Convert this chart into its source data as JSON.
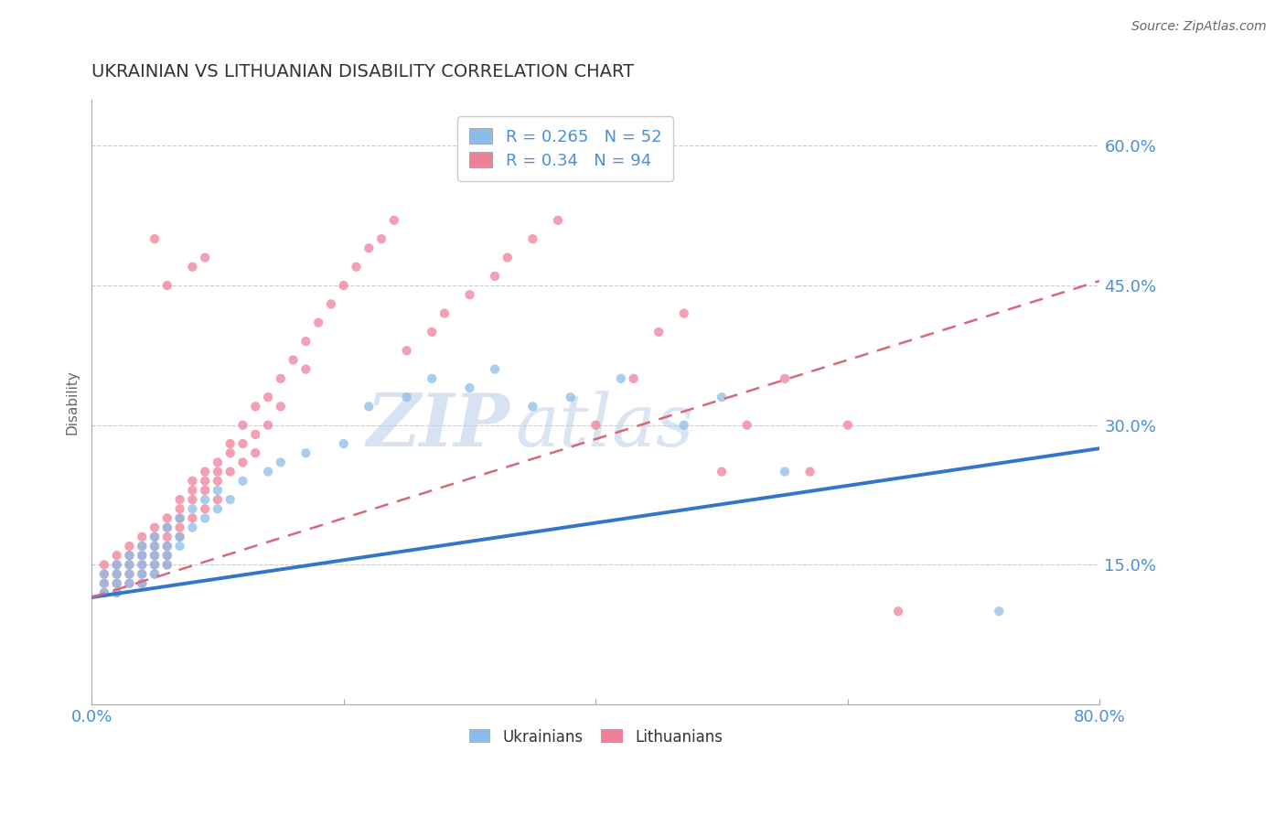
{
  "title": "UKRAINIAN VS LITHUANIAN DISABILITY CORRELATION CHART",
  "source": "Source: ZipAtlas.com",
  "ylabel": "Disability",
  "xlim": [
    0.0,
    0.8
  ],
  "ylim": [
    0.0,
    0.65
  ],
  "yticks": [
    0.0,
    0.15,
    0.3,
    0.45,
    0.6
  ],
  "yticklabels": [
    "",
    "15.0%",
    "30.0%",
    "45.0%",
    "60.0%"
  ],
  "ukrainian_color": "#8BBDE8",
  "lithuanian_color": "#F08098",
  "trend_blue_color": "#3575C8",
  "trend_pink_color": "#D86878",
  "watermark_color": "#CCDDF0",
  "R_ukrainian": 0.265,
  "N_ukrainian": 52,
  "R_lithuanian": 0.34,
  "N_lithuanian": 94,
  "ukr_trend_x0": 0.0,
  "ukr_trend_y0": 0.115,
  "ukr_trend_x1": 0.8,
  "ukr_trend_y1": 0.275,
  "lit_trend_x0": 0.0,
  "lit_trend_y0": 0.115,
  "lit_trend_x1": 0.8,
  "lit_trend_y1": 0.455,
  "ukrainian_x": [
    0.01,
    0.01,
    0.01,
    0.02,
    0.02,
    0.02,
    0.02,
    0.03,
    0.03,
    0.03,
    0.03,
    0.04,
    0.04,
    0.04,
    0.04,
    0.04,
    0.05,
    0.05,
    0.05,
    0.05,
    0.05,
    0.06,
    0.06,
    0.06,
    0.06,
    0.07,
    0.07,
    0.07,
    0.08,
    0.08,
    0.09,
    0.09,
    0.1,
    0.1,
    0.11,
    0.12,
    0.14,
    0.15,
    0.17,
    0.2,
    0.22,
    0.25,
    0.27,
    0.3,
    0.32,
    0.35,
    0.38,
    0.42,
    0.47,
    0.5,
    0.55,
    0.72
  ],
  "ukrainian_y": [
    0.14,
    0.13,
    0.12,
    0.15,
    0.14,
    0.13,
    0.12,
    0.16,
    0.15,
    0.14,
    0.13,
    0.17,
    0.16,
    0.15,
    0.14,
    0.13,
    0.18,
    0.17,
    0.16,
    0.15,
    0.14,
    0.19,
    0.17,
    0.16,
    0.15,
    0.2,
    0.18,
    0.17,
    0.21,
    0.19,
    0.22,
    0.2,
    0.23,
    0.21,
    0.22,
    0.24,
    0.25,
    0.26,
    0.27,
    0.28,
    0.32,
    0.33,
    0.35,
    0.34,
    0.36,
    0.32,
    0.33,
    0.35,
    0.3,
    0.33,
    0.25,
    0.1
  ],
  "lithuanian_x": [
    0.01,
    0.01,
    0.01,
    0.01,
    0.02,
    0.02,
    0.02,
    0.02,
    0.02,
    0.03,
    0.03,
    0.03,
    0.03,
    0.03,
    0.04,
    0.04,
    0.04,
    0.04,
    0.04,
    0.04,
    0.05,
    0.05,
    0.05,
    0.05,
    0.05,
    0.05,
    0.06,
    0.06,
    0.06,
    0.06,
    0.06,
    0.06,
    0.07,
    0.07,
    0.07,
    0.07,
    0.07,
    0.08,
    0.08,
    0.08,
    0.08,
    0.09,
    0.09,
    0.09,
    0.09,
    0.1,
    0.1,
    0.1,
    0.1,
    0.11,
    0.11,
    0.11,
    0.12,
    0.12,
    0.12,
    0.13,
    0.13,
    0.13,
    0.14,
    0.14,
    0.15,
    0.15,
    0.16,
    0.17,
    0.17,
    0.18,
    0.19,
    0.2,
    0.21,
    0.22,
    0.23,
    0.24,
    0.25,
    0.27,
    0.28,
    0.3,
    0.32,
    0.33,
    0.35,
    0.37,
    0.4,
    0.43,
    0.45,
    0.47,
    0.5,
    0.52,
    0.55,
    0.57,
    0.6,
    0.64,
    0.08,
    0.09,
    0.06,
    0.05
  ],
  "lithuanian_y": [
    0.15,
    0.14,
    0.13,
    0.12,
    0.16,
    0.15,
    0.14,
    0.13,
    0.12,
    0.17,
    0.16,
    0.15,
    0.14,
    0.13,
    0.18,
    0.17,
    0.16,
    0.15,
    0.14,
    0.13,
    0.19,
    0.18,
    0.17,
    0.16,
    0.15,
    0.14,
    0.2,
    0.19,
    0.18,
    0.17,
    0.16,
    0.15,
    0.22,
    0.21,
    0.2,
    0.19,
    0.18,
    0.24,
    0.23,
    0.22,
    0.2,
    0.25,
    0.24,
    0.23,
    0.21,
    0.26,
    0.25,
    0.24,
    0.22,
    0.28,
    0.27,
    0.25,
    0.3,
    0.28,
    0.26,
    0.32,
    0.29,
    0.27,
    0.33,
    0.3,
    0.35,
    0.32,
    0.37,
    0.39,
    0.36,
    0.41,
    0.43,
    0.45,
    0.47,
    0.49,
    0.5,
    0.52,
    0.38,
    0.4,
    0.42,
    0.44,
    0.46,
    0.48,
    0.5,
    0.52,
    0.3,
    0.35,
    0.4,
    0.42,
    0.25,
    0.3,
    0.35,
    0.25,
    0.3,
    0.1,
    0.47,
    0.48,
    0.45,
    0.5
  ]
}
